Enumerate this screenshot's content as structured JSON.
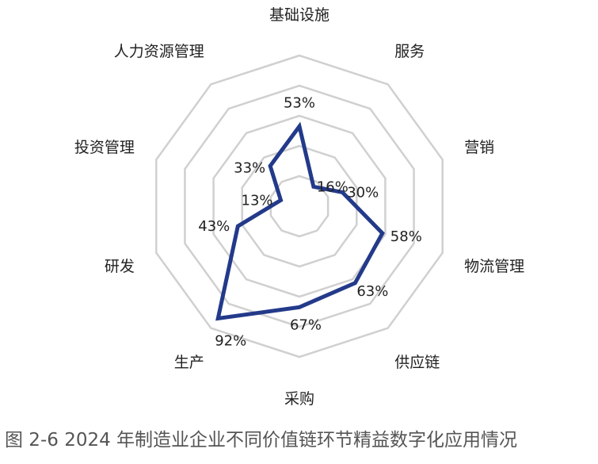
{
  "chart_data": {
    "type": "radar",
    "categories": [
      "基础设施",
      "服务",
      "营销",
      "物流管理",
      "供应链",
      "采购",
      "生产",
      "研发",
      "投资管理",
      "人力资源管理"
    ],
    "values": [
      53,
      16,
      30,
      58,
      63,
      67,
      92,
      43,
      13,
      33
    ],
    "value_labels": [
      "53%",
      "16%",
      "30%",
      "58%",
      "63%",
      "67%",
      "92%",
      "43%",
      "13%",
      "33%"
    ],
    "rlim": [
      0,
      100
    ],
    "grid_levels": 5,
    "series_color": "#233a8a",
    "grid_color": "#d0d0d0"
  },
  "caption": "图 2-6 2024 年制造业企业不同价值链环节精益数字化应用情况"
}
